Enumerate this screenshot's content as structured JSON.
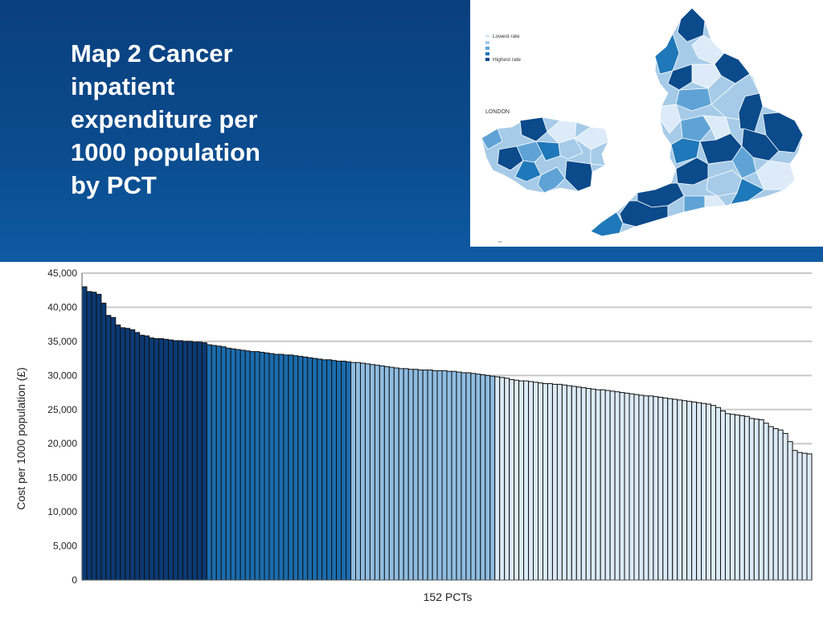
{
  "slide": {
    "title": "Map 2 Cancer\ninpatient\nexpenditure per\n1000 population\nby PCT"
  },
  "map": {
    "legend": [
      {
        "label": "Lowest rate",
        "color": "#dcebf7"
      },
      {
        "label": "",
        "color": "#a6cbe8"
      },
      {
        "label": "",
        "color": "#5fa3d6"
      },
      {
        "label": "",
        "color": "#1f78b9"
      },
      {
        "label": "Highest rate",
        "color": "#0b4a8b"
      }
    ],
    "inset_label": "LONDON"
  },
  "colors": {
    "header_bg": "#0b4b8d",
    "bar_darkest": "#0b3a75",
    "bar_dark": "#1a6cae",
    "bar_mid": "#8fbde2",
    "bar_light": "#dcebf7",
    "bar_outline": "#111111",
    "gridline": "#c8c8c8"
  },
  "chart_data": {
    "type": "bar",
    "title": "",
    "xlabel": "152 PCTs",
    "ylabel": "Cost per 1000 population (£)",
    "ylim": [
      0,
      45000
    ],
    "yticks": [
      0,
      5000,
      10000,
      15000,
      20000,
      25000,
      30000,
      35000,
      40000,
      45000
    ],
    "ytick_labels": [
      "0",
      "5,000",
      "10,000",
      "15,000",
      "20,000",
      "25,000",
      "30,000",
      "35,000",
      "40,000",
      "45,000"
    ],
    "grid": true,
    "sorted": "descending",
    "band_sizes": [
      26,
      30,
      30,
      30,
      36
    ],
    "values": [
      43000,
      42300,
      42200,
      41900,
      40600,
      38800,
      38500,
      37400,
      37000,
      36900,
      36700,
      36300,
      35900,
      35800,
      35500,
      35400,
      35400,
      35300,
      35200,
      35100,
      35100,
      35000,
      35000,
      34900,
      34900,
      34800,
      34500,
      34400,
      34300,
      34200,
      34000,
      33900,
      33800,
      33700,
      33600,
      33500,
      33500,
      33400,
      33300,
      33200,
      33100,
      33100,
      33000,
      33000,
      32900,
      32800,
      32700,
      32600,
      32500,
      32400,
      32300,
      32300,
      32200,
      32100,
      32100,
      32000,
      31900,
      31900,
      31800,
      31700,
      31600,
      31500,
      31400,
      31300,
      31200,
      31100,
      31000,
      31000,
      30900,
      30900,
      30800,
      30800,
      30800,
      30700,
      30700,
      30700,
      30600,
      30600,
      30500,
      30400,
      30400,
      30300,
      30200,
      30100,
      30000,
      29900,
      29800,
      29700,
      29600,
      29400,
      29300,
      29200,
      29200,
      29100,
      29000,
      28900,
      28800,
      28800,
      28700,
      28700,
      28600,
      28500,
      28400,
      28300,
      28200,
      28100,
      28000,
      27900,
      27900,
      27800,
      27700,
      27600,
      27500,
      27400,
      27300,
      27200,
      27100,
      27000,
      27000,
      26900,
      26800,
      26700,
      26600,
      26500,
      26400,
      26300,
      26200,
      26100,
      26000,
      25900,
      25800,
      25600,
      25300,
      24800,
      24400,
      24300,
      24200,
      24100,
      24000,
      23700,
      23600,
      23500,
      23000,
      22500,
      22200,
      22000,
      21500,
      20300,
      19000,
      18700,
      18600,
      18500
    ]
  }
}
